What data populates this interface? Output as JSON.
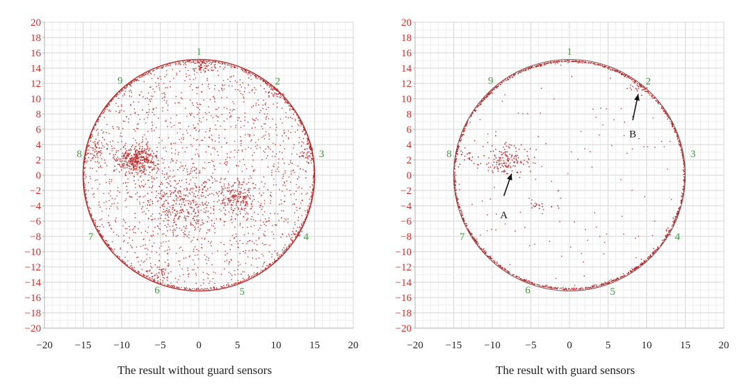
{
  "chart_data": [
    {
      "type": "scatter",
      "title": "The result without guard sensors",
      "xlabel": "",
      "ylabel": "",
      "xlim": [
        -20,
        20
      ],
      "ylim": [
        -20,
        20
      ],
      "x_ticks": [
        "−20",
        "−15",
        "−10",
        "−5",
        "0",
        "5",
        "10",
        "15",
        "20"
      ],
      "y_ticks": [
        "20",
        "18",
        "16",
        "14",
        "12",
        "10",
        "8",
        "6",
        "4",
        "2",
        "0",
        "−2",
        "−4",
        "−6",
        "−8",
        "−10",
        "−12",
        "−14",
        "−16",
        "−18",
        "−20"
      ],
      "grid": true,
      "legend": "none",
      "boundary_circle": {
        "cx": 0,
        "cy": 0,
        "r": 15
      },
      "point_color": "#b51f1f",
      "sensors": [
        {
          "label": "1",
          "x": 0,
          "y": 16.2
        },
        {
          "label": "2",
          "x": 10.2,
          "y": 12.3
        },
        {
          "label": "3",
          "x": 15.9,
          "y": 2.8
        },
        {
          "label": "4",
          "x": 13.9,
          "y": -8.0
        },
        {
          "label": "5",
          "x": 5.6,
          "y": -15.2
        },
        {
          "label": "6",
          "x": -5.4,
          "y": -15.0
        },
        {
          "label": "7",
          "x": -14.0,
          "y": -8.0
        },
        {
          "label": "8",
          "x": -15.5,
          "y": 2.8
        },
        {
          "label": "9",
          "x": -10.2,
          "y": 12.4
        }
      ],
      "clusters": [
        {
          "x": -8,
          "y": 2,
          "sx": 1.3,
          "sy": 0.9,
          "n": 360
        },
        {
          "x": 5,
          "y": -2.8,
          "sx": 1.3,
          "sy": 1.1,
          "n": 150
        },
        {
          "x": -2,
          "y": -3.5,
          "sx": 2.8,
          "sy": 2.2,
          "n": 320
        },
        {
          "x": 0.5,
          "y": 14.2,
          "sx": 0.9,
          "sy": 0.35,
          "n": 50
        },
        {
          "x": 14,
          "y": 3,
          "sx": 0.45,
          "sy": 0.8,
          "n": 45
        },
        {
          "x": -13.2,
          "y": 3.2,
          "sx": 0.6,
          "sy": 0.9,
          "n": 45
        },
        {
          "x": 12.8,
          "y": -7.5,
          "sx": 0.5,
          "sy": 0.6,
          "n": 30
        },
        {
          "x": 9.5,
          "y": 11,
          "sx": 0.8,
          "sy": 0.6,
          "n": 35
        },
        {
          "x": -5,
          "y": -12.8,
          "sx": 0.7,
          "sy": 0.5,
          "n": 25
        }
      ],
      "background_points": 1500,
      "rim_points": 900,
      "annotations": []
    },
    {
      "type": "scatter",
      "title": "The result with guard sensors",
      "xlabel": "",
      "ylabel": "",
      "xlim": [
        -20,
        20
      ],
      "ylim": [
        -20,
        20
      ],
      "x_ticks": [
        "−20",
        "−15",
        "−10",
        "−5",
        "0",
        "5",
        "10",
        "15",
        "20"
      ],
      "y_ticks": [
        "20",
        "18",
        "16",
        "14",
        "12",
        "10",
        "8",
        "6",
        "4",
        "2",
        "0",
        "−2",
        "−4",
        "−6",
        "−8",
        "−10",
        "−12",
        "−14",
        "−16",
        "−18",
        "−20"
      ],
      "grid": true,
      "legend": "none",
      "boundary_circle": {
        "cx": 0,
        "cy": 0,
        "r": 15
      },
      "point_color": "#b51f1f",
      "sensors": [
        {
          "label": "1",
          "x": 0,
          "y": 16.2
        },
        {
          "label": "2",
          "x": 10.2,
          "y": 12.3
        },
        {
          "label": "3",
          "x": 16.0,
          "y": 2.8
        },
        {
          "label": "4",
          "x": 14.0,
          "y": -8.0
        },
        {
          "label": "5",
          "x": 5.6,
          "y": -15.2
        },
        {
          "label": "6",
          "x": -5.4,
          "y": -15.0
        },
        {
          "label": "7",
          "x": -13.9,
          "y": -8.0
        },
        {
          "label": "8",
          "x": -15.6,
          "y": 2.8
        },
        {
          "label": "9",
          "x": -10.2,
          "y": 12.4
        }
      ],
      "clusters": [
        {
          "x": -8,
          "y": 2,
          "sx": 1.5,
          "sy": 1.0,
          "n": 150
        },
        {
          "x": 8.7,
          "y": 11.5,
          "sx": 0.8,
          "sy": 0.35,
          "n": 22
        },
        {
          "x": 12.6,
          "y": -7.6,
          "sx": 0.3,
          "sy": 0.4,
          "n": 12
        },
        {
          "x": -13.5,
          "y": 2.8,
          "sx": 0.6,
          "sy": 0.7,
          "n": 20
        },
        {
          "x": -4,
          "y": -4,
          "sx": 1.3,
          "sy": 0.3,
          "n": 18
        }
      ],
      "background_points": 120,
      "rim_points": 1500,
      "annotations": [
        {
          "label": "A",
          "x": -8.5,
          "y": -5.2,
          "arrow_from": [
            -8.5,
            -2.7
          ],
          "arrow_to": [
            -7.5,
            0.2
          ]
        },
        {
          "label": "B",
          "x": 8.2,
          "y": 5.4,
          "arrow_from": [
            8.2,
            7.2
          ],
          "arrow_to": [
            8.9,
            10.6
          ]
        }
      ]
    }
  ]
}
